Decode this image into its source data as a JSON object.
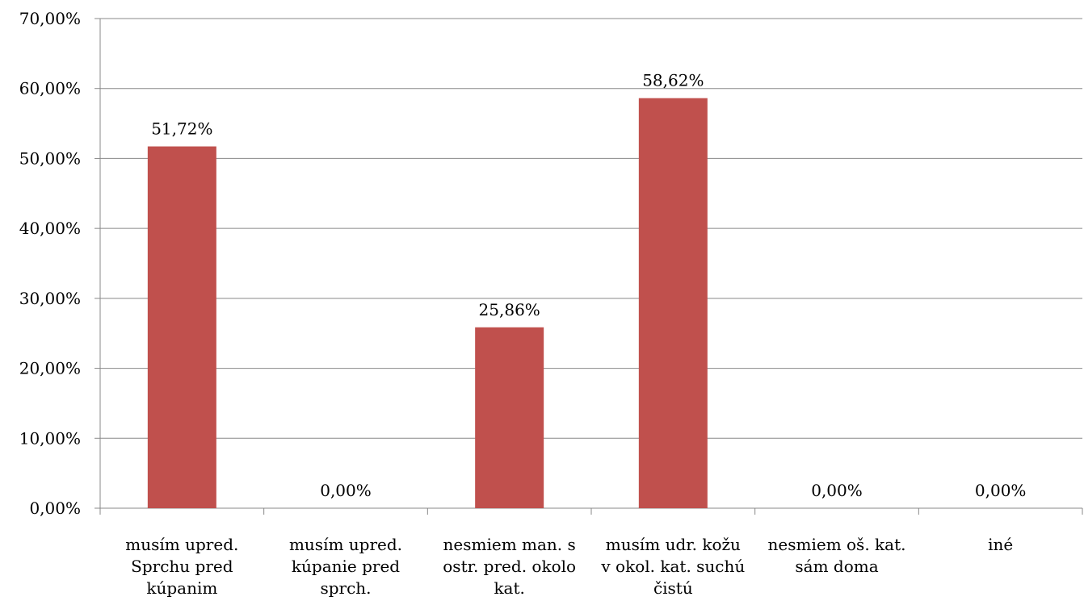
{
  "chart_data": {
    "type": "bar",
    "categories": [
      [
        "musím upred.",
        "Sprchu pred",
        "kúpanim"
      ],
      [
        "musím upred.",
        "kúpanie pred",
        "sprch."
      ],
      [
        "nesmiem man. s",
        "ostr. pred. okolo",
        "kat."
      ],
      [
        "musím udr. kožu",
        "v okol. kat. suchú",
        "čistú"
      ],
      [
        "nesmiem oš. kat.",
        "sám doma"
      ],
      [
        "iné"
      ]
    ],
    "values": [
      51.72,
      0.0,
      25.86,
      58.62,
      0.0,
      0.0
    ],
    "data_labels": [
      "51,72%",
      "0,00%",
      "25,86%",
      "58,62%",
      "0,00%",
      "0,00%"
    ],
    "ylim": [
      0,
      70
    ],
    "yticks": [
      0,
      10,
      20,
      30,
      40,
      50,
      60,
      70
    ],
    "ytick_labels": [
      "0,00%",
      "10,00%",
      "20,00%",
      "30,00%",
      "40,00%",
      "50,00%",
      "60,00%",
      "70,00%"
    ],
    "grid": true,
    "legend": "none",
    "bar_color": "#c0504d",
    "title": "",
    "xlabel": "",
    "ylabel": ""
  }
}
